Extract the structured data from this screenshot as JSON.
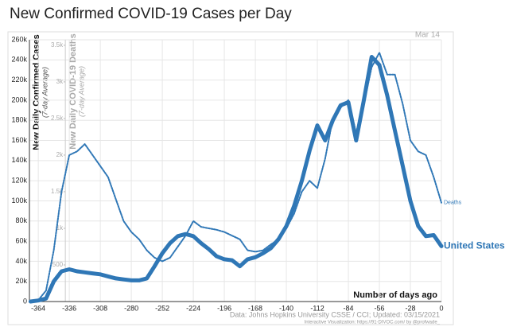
{
  "chart_data": {
    "type": "line",
    "title": "New Confirmed COVID-19 Cases per Day",
    "date_label": "Mar 14",
    "xlabel": "Number of days ago",
    "ylabel": "New Daily Confirmed Cases",
    "ylabel_sub": "(7-day Average)",
    "y2label": "New Daily COVID-19 Deaths",
    "y2label_sub": "(7-day Average)",
    "source": "Data: Johns Hopkins University CSSE / CCI; Updated: 03/15/2021",
    "credit": "Interactive Visualization: https://91-DIVOC.com/ by @profwade_",
    "x": [
      -371,
      -364,
      -357,
      -350,
      -343,
      -336,
      -329,
      -322,
      -315,
      -308,
      -301,
      -294,
      -287,
      -280,
      -273,
      -266,
      -259,
      -252,
      -245,
      -238,
      -231,
      -224,
      -217,
      -210,
      -203,
      -196,
      -189,
      -182,
      -175,
      -168,
      -161,
      -154,
      -147,
      -140,
      -133,
      -126,
      -119,
      -112,
      -105,
      -98,
      -91,
      -84,
      -77,
      -70,
      -63,
      -56,
      -49,
      -42,
      -35,
      -28,
      -21,
      -14,
      -7,
      0
    ],
    "series": [
      {
        "name": "United States",
        "color": "#2f77b6",
        "axis": "y",
        "values": [
          0,
          1000,
          3000,
          20000,
          30000,
          32000,
          30000,
          29000,
          28000,
          27000,
          25000,
          23000,
          22000,
          21000,
          21000,
          23000,
          35000,
          48000,
          58000,
          65000,
          67000,
          65000,
          58000,
          52000,
          45000,
          42000,
          41000,
          35000,
          42000,
          44000,
          48000,
          53000,
          62000,
          75000,
          95000,
          120000,
          150000,
          175000,
          160000,
          180000,
          195000,
          198000,
          160000,
          200000,
          243000,
          235000,
          205000,
          170000,
          135000,
          100000,
          75000,
          65000,
          66000,
          55000
        ]
      },
      {
        "name": "Deaths",
        "color": "#2f77b6",
        "axis": "y2",
        "values": [
          0,
          20,
          150,
          700,
          1500,
          2000,
          2050,
          2150,
          2000,
          1850,
          1700,
          1400,
          1100,
          950,
          850,
          700,
          600,
          550,
          600,
          750,
          900,
          1100,
          1020,
          1000,
          980,
          950,
          900,
          850,
          700,
          680,
          700,
          780,
          850,
          1000,
          1200,
          1500,
          1650,
          1550,
          1950,
          2500,
          2650,
          2750,
          2300,
          2700,
          3200,
          3400,
          3100,
          3100,
          2700,
          2200,
          2050,
          2000,
          1700,
          1350
        ]
      }
    ],
    "xlim": [
      -372,
      0
    ],
    "xticks": [
      -364,
      -336,
      -308,
      -280,
      -252,
      -224,
      -196,
      -168,
      -140,
      -112,
      -84,
      -56,
      -28,
      0
    ],
    "ylim": [
      0,
      260000
    ],
    "yticks": [
      0,
      {
        "value": 20000,
        "label": "20k"
      },
      {
        "value": 40000,
        "label": "40k"
      },
      {
        "value": 60000,
        "label": "60k"
      },
      {
        "value": 80000,
        "label": "80k"
      },
      {
        "value": 100000,
        "label": "100k"
      },
      {
        "value": 120000,
        "label": "120k"
      },
      {
        "value": 140000,
        "label": "140k"
      },
      {
        "value": 160000,
        "label": "160k"
      },
      {
        "value": 180000,
        "label": "180k"
      },
      {
        "value": 200000,
        "label": "200k"
      },
      {
        "value": 220000,
        "label": "220k"
      },
      {
        "value": 240000,
        "label": "240k"
      },
      {
        "value": 260000,
        "label": "260k"
      }
    ],
    "y2lim": [
      0,
      3575
    ],
    "y2ticks": [
      {
        "value": 500,
        "label": "500"
      },
      {
        "value": 1000,
        "label": "1k"
      },
      {
        "value": 1500,
        "label": "1.5k"
      },
      {
        "value": 2000,
        "label": "2k"
      },
      {
        "value": 2500,
        "label": "2.5k"
      },
      {
        "value": 3000,
        "label": "3k"
      },
      {
        "value": 3500,
        "label": "3.5k"
      }
    ],
    "grid": true
  }
}
